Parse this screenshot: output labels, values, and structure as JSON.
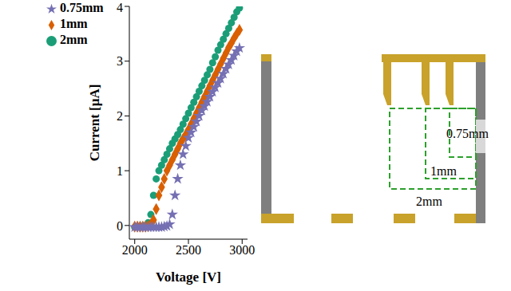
{
  "chart_data": {
    "type": "scatter",
    "x_label": "Voltage [V]",
    "y_label": "Current [μA]",
    "x": [
      2000,
      2025,
      2050,
      2075,
      2100,
      2125,
      2150,
      2175,
      2200,
      2225,
      2250,
      2275,
      2300,
      2325,
      2350,
      2375,
      2400,
      2425,
      2450,
      2475,
      2500,
      2525,
      2550,
      2575,
      2600,
      2625,
      2650,
      2675,
      2700,
      2725,
      2750,
      2775,
      2800,
      2825,
      2850,
      2875,
      2900,
      2925,
      2950,
      2975
    ],
    "series": [
      {
        "name": "2mm",
        "color": "#1b9e77",
        "marker": "circle",
        "values": [
          -0.03,
          -0.03,
          -0.03,
          -0.02,
          0,
          0.05,
          0.2,
          0.55,
          0.85,
          1.0,
          1.1,
          1.2,
          1.3,
          1.4,
          1.5,
          1.58,
          1.66,
          1.75,
          1.85,
          1.95,
          2.05,
          2.15,
          2.25,
          2.35,
          2.45,
          2.55,
          2.65,
          2.75,
          2.85,
          2.97,
          3.08,
          3.2,
          3.3,
          3.4,
          3.5,
          3.6,
          3.7,
          3.8,
          3.9,
          3.97
        ]
      },
      {
        "name": "1mm",
        "color": "#d95f02",
        "marker": "diamond",
        "values": [
          -0.02,
          -0.02,
          -0.02,
          -0.02,
          -0.02,
          -0.01,
          0.02,
          0.1,
          0.3,
          0.55,
          0.7,
          0.85,
          1.0,
          1.1,
          1.2,
          1.3,
          1.4,
          1.5,
          1.58,
          1.66,
          1.75,
          1.85,
          1.95,
          2.05,
          2.15,
          2.25,
          2.35,
          2.45,
          2.55,
          2.65,
          2.75,
          2.85,
          2.95,
          3.05,
          3.15,
          3.25,
          3.33,
          3.42,
          3.5,
          3.57
        ]
      },
      {
        "name": "0.75mm",
        "color": "#7570b3",
        "marker": "star",
        "values": [
          -0.03,
          -0.03,
          -0.03,
          -0.03,
          -0.03,
          -0.03,
          -0.03,
          -0.03,
          -0.03,
          -0.03,
          -0.03,
          -0.02,
          -0.01,
          0.02,
          0.2,
          0.55,
          0.85,
          1.1,
          1.3,
          1.45,
          1.6,
          1.7,
          1.8,
          1.9,
          2.0,
          2.1,
          2.18,
          2.26,
          2.35,
          2.44,
          2.52,
          2.6,
          2.68,
          2.77,
          2.86,
          2.94,
          3.02,
          3.1,
          3.18,
          3.24
        ]
      }
    ],
    "xlim": [
      1950,
      3050
    ],
    "xticks": [
      2000,
      2500,
      3000
    ],
    "ylim": [
      -0.25,
      4
    ],
    "yticks": [
      0,
      1,
      2,
      3,
      4
    ],
    "grid": false,
    "legend": "top-left"
  },
  "diagram": {
    "gap_labels": [
      "0.75mm",
      "1mm",
      "2mm"
    ]
  }
}
